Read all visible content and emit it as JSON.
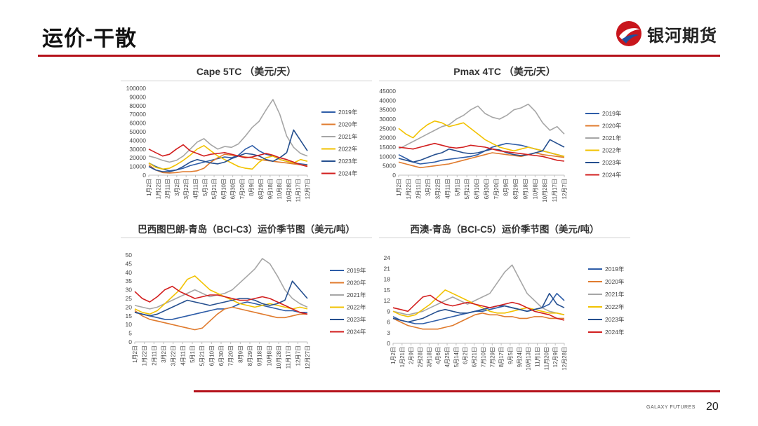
{
  "page": {
    "title": "运价-干散",
    "logo_text": "银河期货",
    "footer_brand": "GALAXY FUTURES",
    "page_number": "20"
  },
  "series_colors": {
    "2019年": "#2e5da8",
    "2020年": "#e07b2e",
    "2021年": "#a6a6a6",
    "2022年": "#f2c200",
    "2023年": "#254f8f",
    "2024年": "#d21f1f"
  },
  "chart_data": [
    {
      "type": "line",
      "title": "Cape 5TC （美元/天）",
      "ylim": [
        0,
        100000
      ],
      "yticks": [
        0,
        10000,
        20000,
        30000,
        40000,
        50000,
        60000,
        70000,
        80000,
        90000,
        100000
      ],
      "x_labels": [
        "1月2日",
        "1月22日",
        "2月11日",
        "3月2日",
        "3月22日",
        "4月11日",
        "5月1日",
        "5月21日",
        "6月10日",
        "6月30日",
        "7月20日",
        "8月9日",
        "8月29日",
        "9月18日",
        "10月8日",
        "10月28日",
        "11月17日",
        "12月7日"
      ],
      "legend": [
        "2019年",
        "2020年",
        "2021年",
        "2022年",
        "2023年",
        "2024年"
      ],
      "series": [
        {
          "name": "2019年",
          "values": [
            14000,
            10000,
            7000,
            5000,
            6000,
            8000,
            11000,
            13000,
            15000,
            17000,
            19000,
            21000,
            20000,
            23000,
            30000,
            34000,
            28000,
            24000,
            22000,
            18000,
            16000,
            14000,
            13000,
            12000
          ]
        },
        {
          "name": "2020年",
          "values": [
            12000,
            6000,
            3000,
            2500,
            3000,
            4000,
            4000,
            5000,
            8000,
            15000,
            20000,
            24000,
            23000,
            22000,
            21000,
            20000,
            18000,
            17000,
            16000,
            15000,
            14000,
            13000,
            12000,
            11000
          ]
        },
        {
          "name": "2021年",
          "values": [
            22000,
            20000,
            17000,
            15000,
            17000,
            22000,
            30000,
            38000,
            42000,
            35000,
            30000,
            33000,
            32000,
            36000,
            45000,
            55000,
            62000,
            75000,
            87000,
            70000,
            45000,
            32000,
            25000,
            22000
          ]
        },
        {
          "name": "2022年",
          "values": [
            14000,
            9000,
            7000,
            8000,
            12000,
            17000,
            23000,
            30000,
            34000,
            28000,
            22000,
            18000,
            14000,
            10000,
            8000,
            7000,
            15000,
            20000,
            22000,
            18000,
            16000,
            14000,
            18000,
            16000
          ]
        },
        {
          "name": "2023年",
          "values": [
            10000,
            6000,
            4000,
            4000,
            6000,
            10000,
            15000,
            18000,
            16000,
            14000,
            13000,
            15000,
            19000,
            22000,
            25000,
            24000,
            22000,
            18000,
            16000,
            20000,
            26000,
            52000,
            40000,
            28000
          ]
        },
        {
          "name": "2024年",
          "values": [
            30000,
            26000,
            22000,
            24000,
            30000,
            35000,
            28000,
            25000,
            22000,
            24000,
            25000,
            26000,
            24000,
            22000,
            20000,
            21000,
            23000,
            25000,
            23000,
            20000,
            18000,
            15000,
            12000,
            10000
          ]
        }
      ]
    },
    {
      "type": "line",
      "title": "Pmax 4TC （美元/天）",
      "ylim": [
        0,
        45000
      ],
      "yticks": [
        0,
        5000,
        10000,
        15000,
        20000,
        25000,
        30000,
        35000,
        40000,
        45000
      ],
      "x_labels": [
        "1月2日",
        "1月22日",
        "2月11日",
        "3月2日",
        "3月22日",
        "4月11日",
        "5月1日",
        "5月21日",
        "6月10日",
        "6月30日",
        "7月20日",
        "8月9日",
        "8月29日",
        "9月18日",
        "10月8日",
        "10月28日",
        "11月17日",
        "12月7日"
      ],
      "legend": [
        "2019年",
        "2020年",
        "2021年",
        "2022年",
        "2023年",
        "2024年"
      ],
      "series": [
        {
          "name": "2019年",
          "values": [
            11000,
            9000,
            7000,
            6000,
            6500,
            7000,
            8000,
            8500,
            9000,
            9500,
            10000,
            11000,
            13000,
            15000,
            16000,
            17000,
            16500,
            16000,
            15000,
            14000,
            13000,
            12000,
            11000,
            10000
          ]
        },
        {
          "name": "2020年",
          "values": [
            7000,
            6000,
            5000,
            4000,
            4500,
            5000,
            5500,
            6000,
            7000,
            8000,
            9000,
            10000,
            11000,
            12000,
            11500,
            11000,
            10500,
            10000,
            11000,
            12000,
            11000,
            10500,
            10000,
            9500
          ]
        },
        {
          "name": "2021年",
          "values": [
            14000,
            16000,
            18000,
            20000,
            22000,
            24000,
            26000,
            27000,
            30000,
            32000,
            35000,
            37000,
            33000,
            31000,
            30000,
            32000,
            35000,
            36000,
            38000,
            34000,
            28000,
            24000,
            26000,
            22000
          ]
        },
        {
          "name": "2022年",
          "values": [
            25000,
            22000,
            20000,
            24000,
            27000,
            29000,
            28000,
            26000,
            27000,
            28000,
            25000,
            22000,
            19000,
            17000,
            15000,
            14000,
            13000,
            14000,
            15000,
            14000,
            13000,
            12000,
            11000,
            10000
          ]
        },
        {
          "name": "2023年",
          "values": [
            9000,
            8000,
            7000,
            8000,
            9500,
            11000,
            12000,
            14000,
            13000,
            12000,
            11500,
            12000,
            13000,
            14000,
            13500,
            12000,
            11000,
            10500,
            11000,
            12000,
            13000,
            19000,
            17000,
            15000
          ]
        },
        {
          "name": "2024年",
          "values": [
            15000,
            14500,
            14000,
            15000,
            16000,
            17000,
            16000,
            15000,
            14500,
            15000,
            16000,
            15500,
            15000,
            14000,
            13000,
            12500,
            12000,
            11500,
            11000,
            10500,
            10000,
            9000,
            8000,
            7500
          ]
        }
      ]
    },
    {
      "type": "line",
      "title": "巴西图巴朗-青岛（BCI-C3）运价季节图（美元/吨）",
      "ylim": [
        0,
        50
      ],
      "yticks": [
        0,
        5,
        10,
        15,
        20,
        25,
        30,
        35,
        40,
        45,
        50
      ],
      "x_labels": [
        "1月2日",
        "1月22日",
        "2月11日",
        "3月2日",
        "3月22日",
        "4月11日",
        "5月1日",
        "5月21日",
        "6月10日",
        "6月30日",
        "7月20日",
        "8月9日",
        "8月29日",
        "9月18日",
        "10月8日",
        "10月28日",
        "11月17日",
        "12月7日",
        "12月27日"
      ],
      "legend": [
        "2019年",
        "2020年",
        "2021年",
        "2022年",
        "2023年",
        "2024年"
      ],
      "series": [
        {
          "name": "2019年",
          "values": [
            17,
            16,
            15,
            14,
            13,
            13,
            14,
            15,
            16,
            17,
            18,
            19,
            19,
            20,
            22,
            23,
            22,
            21,
            20,
            19,
            18,
            18,
            17,
            17
          ]
        },
        {
          "name": "2020年",
          "values": [
            18,
            15,
            13,
            12,
            11,
            10,
            9,
            8,
            7,
            8,
            12,
            16,
            19,
            20,
            19,
            18,
            17,
            16,
            15,
            14,
            14,
            15,
            16,
            16
          ]
        },
        {
          "name": "2021年",
          "values": [
            21,
            20,
            19,
            20,
            22,
            24,
            26,
            28,
            30,
            28,
            26,
            27,
            28,
            30,
            34,
            38,
            42,
            48,
            45,
            38,
            30,
            25,
            22,
            20
          ]
        },
        {
          "name": "2022年",
          "values": [
            19,
            17,
            16,
            18,
            22,
            26,
            30,
            36,
            38,
            34,
            30,
            28,
            26,
            24,
            22,
            21,
            20,
            21,
            22,
            21,
            20,
            19,
            20,
            19
          ]
        },
        {
          "name": "2023年",
          "values": [
            17,
            16,
            15,
            16,
            18,
            20,
            22,
            24,
            23,
            22,
            21,
            22,
            23,
            24,
            25,
            25,
            24,
            22,
            21,
            22,
            24,
            35,
            30,
            25
          ]
        },
        {
          "name": "2024年",
          "values": [
            29,
            25,
            23,
            26,
            30,
            32,
            29,
            27,
            25,
            26,
            27,
            27,
            26,
            25,
            24,
            24,
            25,
            26,
            25,
            23,
            21,
            19,
            17,
            16
          ]
        }
      ]
    },
    {
      "type": "line",
      "title": "西澳-青岛（BCI-C5）运价季节图（美元/吨）",
      "ylim": [
        0,
        24
      ],
      "yticks": [
        0,
        3,
        6,
        9,
        12,
        15,
        18,
        21,
        24
      ],
      "x_labels": [
        "1月2日",
        "1月21日",
        "2月9日",
        "2月28日",
        "3月18日",
        "4月6日",
        "4月25日",
        "5月14日",
        "6月2日",
        "6月21日",
        "7月10日",
        "7月29日",
        "8月17日",
        "9月5日",
        "9月24日",
        "10月13日",
        "11月1日",
        "11月20日",
        "12月9日",
        "12月28日"
      ],
      "legend": [
        "2019年",
        "2020年",
        "2021年",
        "2022年",
        "2023年",
        "2024年"
      ],
      "series": [
        {
          "name": "2019年",
          "values": [
            7.5,
            6.5,
            6,
            5.5,
            5.5,
            6,
            6.5,
            7,
            7.5,
            8,
            8.5,
            9,
            9,
            9.5,
            10,
            10.5,
            10,
            9.5,
            9,
            9.5,
            10,
            11,
            14,
            12
          ]
        },
        {
          "name": "2020年",
          "values": [
            7,
            6,
            5,
            4.5,
            4,
            4,
            4,
            4.5,
            5,
            6,
            7,
            8,
            8.5,
            8,
            8,
            7.5,
            7.5,
            7,
            7,
            7.5,
            7.5,
            7,
            7,
            7
          ]
        },
        {
          "name": "2021年",
          "values": [
            9,
            8.5,
            8,
            8.5,
            9,
            10,
            11,
            12,
            13,
            12,
            11,
            12,
            13,
            14,
            17,
            20,
            22,
            18,
            14,
            12,
            10,
            9,
            8.5,
            8
          ]
        },
        {
          "name": "2022年",
          "values": [
            9,
            8,
            7.5,
            8,
            9.5,
            11,
            13,
            15,
            14,
            13,
            12,
            11,
            10,
            9,
            8.5,
            8.5,
            9,
            9.5,
            10,
            9.5,
            9,
            8.5,
            8.5,
            8
          ]
        },
        {
          "name": "2023年",
          "values": [
            7,
            6.5,
            6,
            6.5,
            7,
            8,
            9,
            9.5,
            9,
            8.5,
            8.5,
            9,
            9.5,
            10,
            10.5,
            10.5,
            10,
            9.5,
            9,
            9.5,
            10,
            14,
            11,
            10
          ]
        },
        {
          "name": "2024年",
          "values": [
            10,
            9.5,
            9,
            11,
            13,
            13.5,
            12,
            11,
            10.5,
            11,
            11.5,
            11,
            10.5,
            10,
            10.5,
            11,
            11.5,
            11,
            10,
            9,
            8.5,
            8,
            7,
            6.5
          ]
        }
      ]
    }
  ]
}
